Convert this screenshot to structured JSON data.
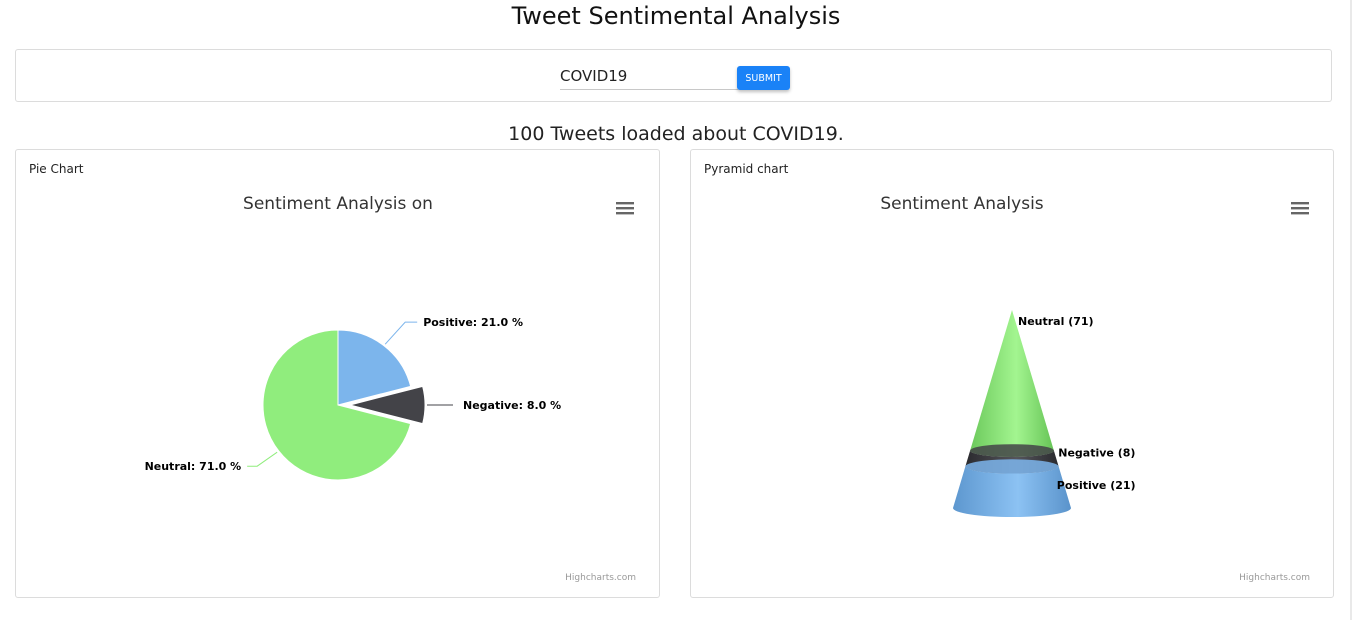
{
  "header": {
    "title": "Tweet Sentimental Analysis"
  },
  "search": {
    "value": "COVID19",
    "submit_label": "SUBMIT"
  },
  "status": {
    "text": "100 Tweets loaded about COVID19."
  },
  "pie_card": {
    "label": "Pie Chart",
    "credit": "Highcharts.com"
  },
  "pyramid_card": {
    "label": "Pyramid chart",
    "credit": "Highcharts.com"
  },
  "colors": {
    "positive": "#7cb5ec",
    "negative": "#434348",
    "neutral": "#90ed7d",
    "submit": "#1a82f7"
  },
  "icons": {
    "chart_menu": "hamburger-menu-icon"
  },
  "chart_data": [
    {
      "type": "pie",
      "title": "Sentiment Analysis on",
      "categories": [
        "Positive",
        "Negative",
        "Neutral"
      ],
      "values": [
        21.0,
        8.0,
        71.0
      ],
      "labels": [
        "Positive: 21.0 %",
        "Negative: 8.0 %",
        "Neutral: 71.0 %"
      ],
      "sliced": "Negative",
      "legend": "none"
    },
    {
      "type": "pyramid",
      "title": "Sentiment Analysis",
      "categories": [
        "Neutral",
        "Negative",
        "Positive"
      ],
      "values": [
        71,
        8,
        21
      ],
      "labels": [
        "Neutral (71)",
        "Negative (8)",
        "Positive (21)"
      ],
      "legend": "none"
    }
  ]
}
